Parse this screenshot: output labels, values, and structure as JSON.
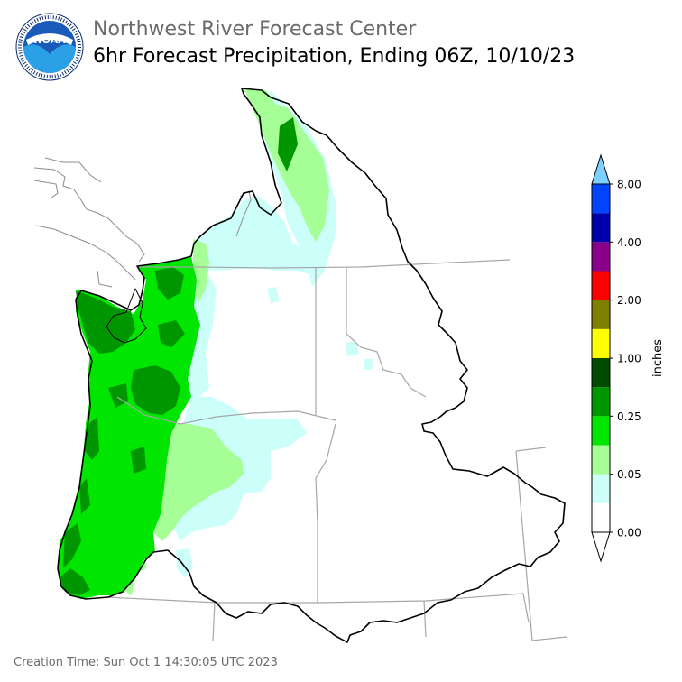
{
  "header": {
    "title_line1": "Northwest River Forecast Center",
    "title_line2": "6hr Forecast Precipitation, Ending 06Z, 10/10/23",
    "logo_text": "NOAA",
    "logo_ring_text": "NATIONAL OCEANIC AND ATMOSPHERIC ADMINISTRATION · U.S. DEPARTMENT OF COMMERCE"
  },
  "colorbar": {
    "unit_label": "inches",
    "tick_labels": [
      "0.00",
      "0.05",
      "0.25",
      "1.00",
      "2.00",
      "4.00",
      "8.00"
    ],
    "bins": [
      {
        "color": "#ffffff"
      },
      {
        "color": "#ccfffa"
      },
      {
        "color": "#a6ff96"
      },
      {
        "color": "#00e600"
      },
      {
        "color": "#009600"
      },
      {
        "color": "#004b00"
      },
      {
        "color": "#ffff00"
      },
      {
        "color": "#7f7f00"
      },
      {
        "color": "#ff0000"
      },
      {
        "color": "#8b008b"
      },
      {
        "color": "#0000aa"
      },
      {
        "color": "#0044ff"
      }
    ],
    "over_color": "#7dcfff",
    "under_color": "#ffffff"
  },
  "map_colors": {
    "light_cyan": "#ccfffa",
    "light_green": "#a6ff96",
    "green": "#00e600",
    "dark_green": "#009600",
    "border": "#000000",
    "state_lines": "#a6a6a6",
    "coast": "#8c8c8c"
  },
  "footer": {
    "creation_time": "Creation Time: Sun Oct 1 14:30:05 UTC 2023"
  }
}
